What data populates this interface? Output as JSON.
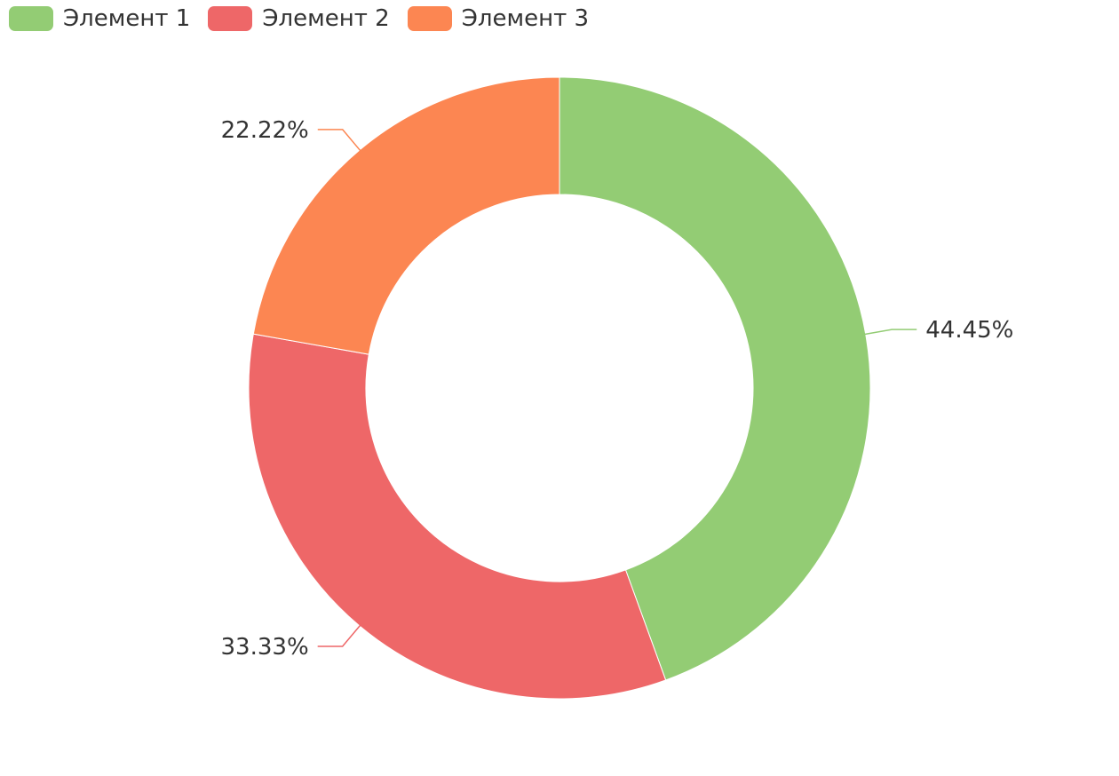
{
  "chart_data": {
    "type": "pie",
    "variant": "donut",
    "title": "",
    "legend": {
      "placement": "top-left",
      "entries": [
        "Элемент 1",
        "Элемент 2",
        "Элемент 3"
      ]
    },
    "categories": [
      "Элемент 1",
      "Элемент 2",
      "Элемент 3"
    ],
    "values": [
      44.45,
      33.33,
      22.22
    ],
    "labels": [
      "44.45%",
      "33.33%",
      "22.22%"
    ],
    "colors": [
      "#93cc74",
      "#ee6768",
      "#fc8652"
    ],
    "start_angle": "12 o'clock",
    "direction": "clockwise",
    "grid": false
  }
}
